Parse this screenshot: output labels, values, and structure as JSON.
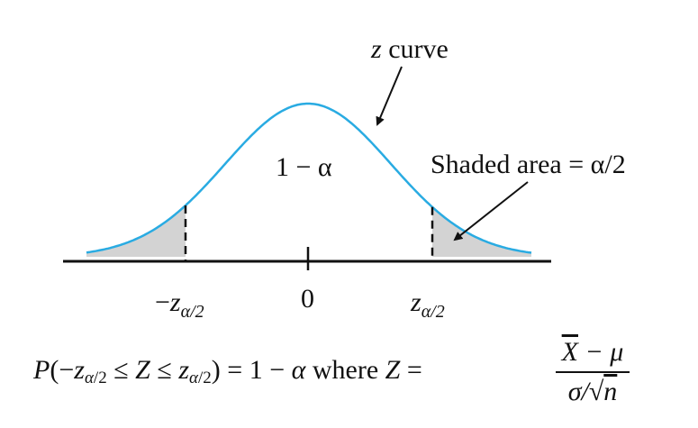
{
  "diagram": {
    "curve_label": "z curve",
    "center_label": "1 − α",
    "tail_label": "Shaded area = α/2",
    "axis": {
      "left_tick": "−zα/2",
      "center_tick": "0",
      "right_tick": "zα/2"
    },
    "colors": {
      "curve": "#29abe2",
      "shade": "#d3d3d3",
      "axis": "#111111"
    }
  },
  "formula": {
    "left": "P(−zα/2 ≤ Z ≤ zα/2) = 1 − α where Z =",
    "numerator": "X − μ",
    "denominator": "σ/√n"
  }
}
